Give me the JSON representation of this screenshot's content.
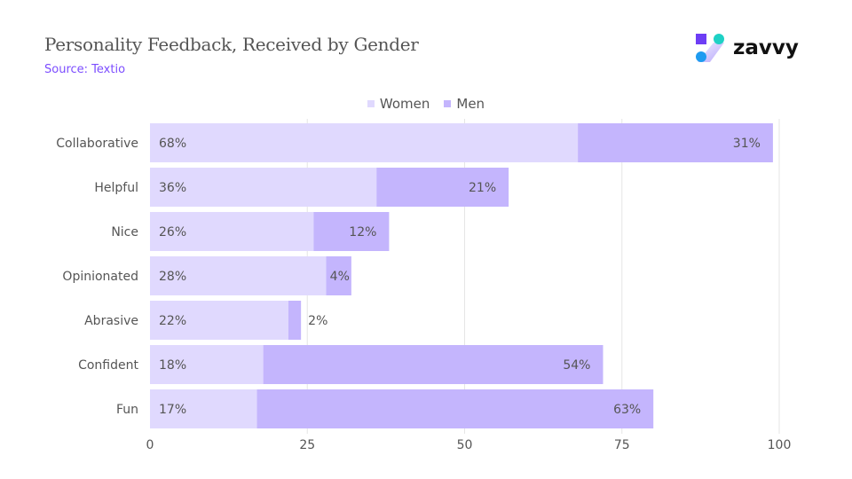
{
  "header": {
    "title": "Personality Feedback, Received by Gender",
    "source": "Source: Textio",
    "logo_text": "zavvy"
  },
  "colors": {
    "women": "#e0d9fe",
    "men": "#c4b5fd",
    "grid": "#e6e6e6",
    "text": "#555555"
  },
  "chart_data": {
    "type": "bar",
    "orientation": "horizontal",
    "stacked": true,
    "categories": [
      "Collaborative",
      "Helpful",
      "Nice",
      "Opinionated",
      "Abrasive",
      "Confident",
      "Fun"
    ],
    "series": [
      {
        "name": "Women",
        "values": [
          68,
          36,
          26,
          28,
          22,
          18,
          17
        ],
        "labels": [
          "68%",
          "36%",
          "26%",
          "28%",
          "22%",
          "18%",
          "17%"
        ]
      },
      {
        "name": "Men",
        "values": [
          31,
          21,
          12,
          4,
          2,
          54,
          63
        ],
        "labels": [
          "31%",
          "21%",
          "12%",
          "4%",
          "2%",
          "54%",
          "63%"
        ]
      }
    ],
    "xlim": [
      0,
      100
    ],
    "xticks": [
      "0",
      "25",
      "50",
      "75",
      "100"
    ],
    "grid": true,
    "legend_placement": "top"
  }
}
